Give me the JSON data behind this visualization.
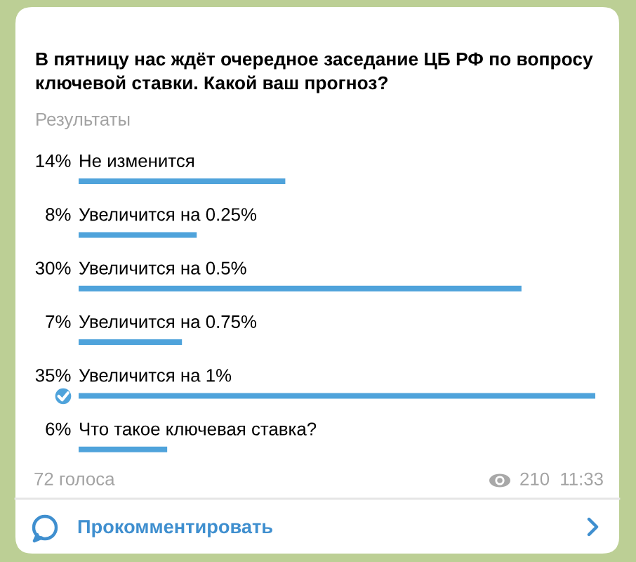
{
  "chart_data": {
    "type": "bar",
    "orientation": "horizontal",
    "title": "В пятницу нас ждёт очередное заседание ЦБ РФ по вопросу ключевой ставки. Какой ваш прогноз?",
    "subtitle": "Результаты",
    "categories": [
      "Не изменится",
      "Увеличится на 0.25%",
      "Увеличится на 0.5%",
      "Увеличится на 0.75%",
      "Увеличится на 1%",
      "Что такое ключевая ставка?"
    ],
    "values": [
      14,
      8,
      30,
      7,
      35,
      6
    ],
    "value_labels": [
      "14%",
      "8%",
      "30%",
      "7%",
      "35%",
      "6%"
    ],
    "color": "#4fa3db",
    "tick_labels": "y",
    "annotations": [
      "72 голоса",
      "210",
      "11:33",
      "Прокомментировать"
    ]
  }
}
